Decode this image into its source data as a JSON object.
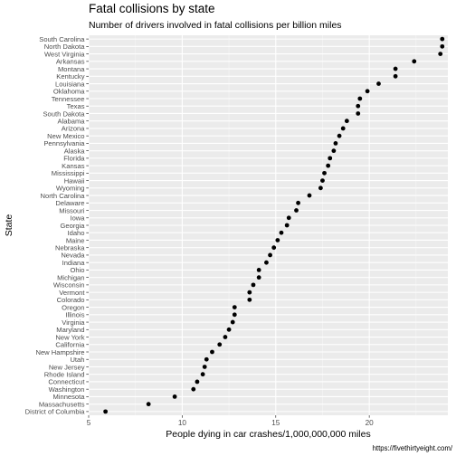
{
  "chart_data": {
    "type": "scatter",
    "title": "Fatal collisions by state",
    "subtitle": "Number of drivers involved in fatal collisions per billion miles",
    "xlabel": "People dying in car crashes/1,000,000,000 miles",
    "ylabel": "State",
    "caption": "https://fivethirtyeight.com/",
    "xlim": [
      5,
      24.2
    ],
    "x_ticks": [
      5,
      10,
      15,
      20
    ],
    "grid": true,
    "point_color": "#000000",
    "panel_background": "#ebebeb",
    "points": [
      {
        "state": "South Carolina",
        "value": 23.9
      },
      {
        "state": "North Dakota",
        "value": 23.9
      },
      {
        "state": "West Virginia",
        "value": 23.8
      },
      {
        "state": "Arkansas",
        "value": 22.4
      },
      {
        "state": "Montana",
        "value": 21.4
      },
      {
        "state": "Kentucky",
        "value": 21.4
      },
      {
        "state": "Louisiana",
        "value": 20.5
      },
      {
        "state": "Oklahoma",
        "value": 19.9
      },
      {
        "state": "Tennessee",
        "value": 19.5
      },
      {
        "state": "Texas",
        "value": 19.4
      },
      {
        "state": "South Dakota",
        "value": 19.4
      },
      {
        "state": "Alabama",
        "value": 18.8
      },
      {
        "state": "Arizona",
        "value": 18.6
      },
      {
        "state": "New Mexico",
        "value": 18.4
      },
      {
        "state": "Pennsylvania",
        "value": 18.2
      },
      {
        "state": "Alaska",
        "value": 18.1
      },
      {
        "state": "Florida",
        "value": 17.9
      },
      {
        "state": "Kansas",
        "value": 17.8
      },
      {
        "state": "Mississippi",
        "value": 17.6
      },
      {
        "state": "Hawaii",
        "value": 17.5
      },
      {
        "state": "Wyoming",
        "value": 17.4
      },
      {
        "state": "North Carolina",
        "value": 16.8
      },
      {
        "state": "Delaware",
        "value": 16.2
      },
      {
        "state": "Missouri",
        "value": 16.1
      },
      {
        "state": "Iowa",
        "value": 15.7
      },
      {
        "state": "Georgia",
        "value": 15.6
      },
      {
        "state": "Idaho",
        "value": 15.3
      },
      {
        "state": "Maine",
        "value": 15.1
      },
      {
        "state": "Nebraska",
        "value": 14.9
      },
      {
        "state": "Nevada",
        "value": 14.7
      },
      {
        "state": "Indiana",
        "value": 14.5
      },
      {
        "state": "Ohio",
        "value": 14.1
      },
      {
        "state": "Michigan",
        "value": 14.1
      },
      {
        "state": "Wisconsin",
        "value": 13.8
      },
      {
        "state": "Vermont",
        "value": 13.6
      },
      {
        "state": "Colorado",
        "value": 13.6
      },
      {
        "state": "Oregon",
        "value": 12.8
      },
      {
        "state": "Illinois",
        "value": 12.8
      },
      {
        "state": "Virginia",
        "value": 12.7
      },
      {
        "state": "Maryland",
        "value": 12.5
      },
      {
        "state": "New York",
        "value": 12.3
      },
      {
        "state": "California",
        "value": 12.0
      },
      {
        "state": "New Hampshire",
        "value": 11.6
      },
      {
        "state": "Utah",
        "value": 11.3
      },
      {
        "state": "New Jersey",
        "value": 11.2
      },
      {
        "state": "Rhode Island",
        "value": 11.1
      },
      {
        "state": "Connecticut",
        "value": 10.8
      },
      {
        "state": "Washington",
        "value": 10.6
      },
      {
        "state": "Minnesota",
        "value": 9.6
      },
      {
        "state": "Massachusetts",
        "value": 8.2
      },
      {
        "state": "District of Columbia",
        "value": 5.9
      }
    ]
  }
}
